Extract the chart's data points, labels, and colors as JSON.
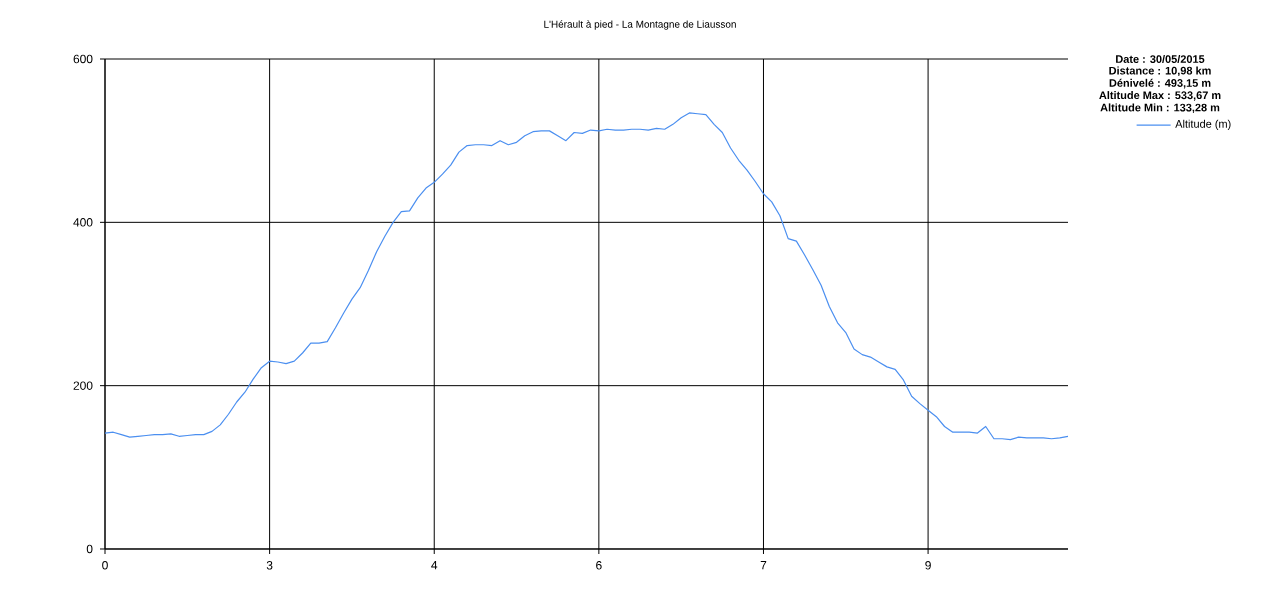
{
  "chart_data": {
    "type": "line",
    "title": "L'Hérault à pied - La Montagne de Liausson",
    "annotations": [
      "Date : 30/05/2015",
      "Distance : 10,98 km",
      "Dénivelé : 493,15 m",
      "Altitude Max : 533,67 m",
      "Altitude Min : 133,28 m"
    ],
    "categories": [
      "0",
      null,
      null,
      null,
      null,
      null,
      null,
      null,
      null,
      null,
      null,
      null,
      null,
      null,
      null,
      null,
      null,
      null,
      null,
      null,
      "3",
      null,
      null,
      null,
      null,
      null,
      null,
      null,
      null,
      null,
      null,
      null,
      null,
      null,
      null,
      null,
      null,
      null,
      null,
      null,
      "4",
      null,
      null,
      null,
      null,
      null,
      null,
      null,
      null,
      null,
      null,
      null,
      null,
      null,
      null,
      null,
      null,
      null,
      null,
      null,
      "6",
      null,
      null,
      null,
      null,
      null,
      null,
      null,
      null,
      null,
      null,
      null,
      null,
      null,
      null,
      null,
      null,
      null,
      null,
      null,
      "7",
      null,
      null,
      null,
      null,
      null,
      null,
      null,
      null,
      null,
      null,
      null,
      null,
      null,
      null,
      null,
      null,
      null,
      null,
      null,
      "9",
      null,
      null,
      null,
      null,
      null,
      null,
      null,
      null,
      null,
      null,
      null,
      null,
      null,
      null,
      null,
      null,
      null
    ],
    "series": [
      {
        "name": "Altitude (m)",
        "color": "#4b8ff0",
        "values": [
          142,
          143,
          140,
          137,
          138,
          139,
          140,
          140,
          141,
          138,
          139,
          140,
          140,
          144,
          152,
          165,
          180,
          192,
          208,
          222,
          230,
          229,
          227,
          230,
          240,
          252,
          252,
          254,
          271,
          289,
          306,
          320,
          341,
          364,
          383,
          400,
          413,
          414,
          430,
          442,
          449,
          459,
          470,
          486,
          494,
          495,
          495,
          494,
          500,
          495,
          498,
          506,
          511,
          512,
          512,
          506,
          500,
          510,
          509,
          513,
          512,
          514,
          513,
          513,
          514,
          514,
          513,
          515,
          514,
          520,
          528,
          534,
          533,
          532,
          520,
          510,
          491,
          476,
          464,
          450,
          435,
          425,
          408,
          380,
          377,
          360,
          342,
          323,
          297,
          277,
          265,
          245,
          238,
          235,
          229,
          223,
          220,
          207,
          187,
          178,
          170,
          162,
          150,
          143,
          143,
          143,
          142,
          150,
          135,
          135,
          134,
          137,
          136,
          136,
          136,
          135,
          136,
          138
        ]
      }
    ],
    "ylim": [
      0,
      600
    ],
    "yticks": [
      0,
      200,
      400,
      600
    ],
    "grid": true,
    "legend": "top right",
    "marker": "none",
    "line_style": "solid"
  }
}
